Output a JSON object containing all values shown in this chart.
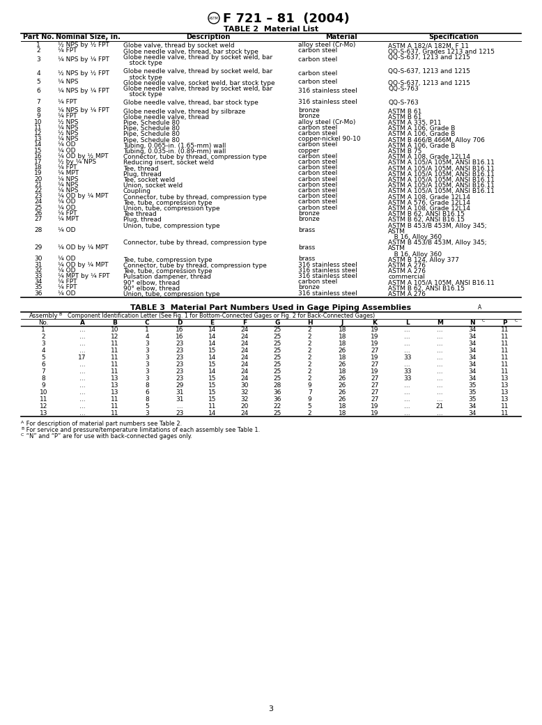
{
  "title": "F 721 – 81  (2004)",
  "table2_title": "TABLE 2  Material List",
  "table3_title": "TABLE 3  Material Part Numbers Used in Gage Piping Assemblies",
  "table2_headers": [
    "Part No.",
    "Nominal Size, in.",
    "Description",
    "Material",
    "Specification"
  ],
  "table2_col_props": [
    0.07,
    0.13,
    0.35,
    0.18,
    0.27
  ],
  "table3_letters": [
    "A",
    "B",
    "C",
    "D",
    "E",
    "F",
    "G",
    "H",
    "J",
    "K",
    "L",
    "M",
    "N",
    "P"
  ],
  "table3_letter_supers": [
    "",
    "",
    "",
    "",
    "",
    "",
    "",
    "",
    "",
    "",
    "",
    "",
    "C",
    "C"
  ],
  "table3_rows": [
    [
      "1",
      "...",
      "10",
      "1",
      "16",
      "14",
      "24",
      "25",
      "2",
      "18",
      "19",
      "...",
      "...",
      "34",
      "11"
    ],
    [
      "2",
      "...",
      "12",
      "4",
      "16",
      "14",
      "24",
      "25",
      "2",
      "18",
      "19",
      "...",
      "...",
      "34",
      "11"
    ],
    [
      "3",
      "...",
      "11",
      "3",
      "23",
      "14",
      "24",
      "25",
      "2",
      "18",
      "19",
      "...",
      "...",
      "34",
      "11"
    ],
    [
      "4",
      "...",
      "11",
      "3",
      "23",
      "15",
      "24",
      "25",
      "2",
      "26",
      "27",
      "...",
      "...",
      "34",
      "11"
    ],
    [
      "5",
      "17",
      "11",
      "3",
      "23",
      "14",
      "24",
      "25",
      "2",
      "18",
      "19",
      "33",
      "...",
      "34",
      "11"
    ],
    [
      "6",
      "...",
      "11",
      "3",
      "23",
      "15",
      "24",
      "25",
      "2",
      "26",
      "27",
      "...",
      "...",
      "34",
      "11"
    ],
    [
      "7",
      "...",
      "11",
      "3",
      "23",
      "14",
      "24",
      "25",
      "2",
      "18",
      "19",
      "33",
      "...",
      "34",
      "11"
    ],
    [
      "8",
      "...",
      "13",
      "3",
      "23",
      "15",
      "24",
      "25",
      "2",
      "26",
      "27",
      "33",
      "...",
      "34",
      "13"
    ],
    [
      "9",
      "...",
      "13",
      "8",
      "29",
      "15",
      "30",
      "28",
      "9",
      "26",
      "27",
      "...",
      "...",
      "35",
      "13"
    ],
    [
      "10",
      "...",
      "13",
      "6",
      "31",
      "15",
      "32",
      "36",
      "7",
      "26",
      "27",
      "...",
      "...",
      "35",
      "13"
    ],
    [
      "11",
      "...",
      "11",
      "8",
      "31",
      "15",
      "32",
      "36",
      "9",
      "26",
      "27",
      "...",
      "...",
      "35",
      "13"
    ],
    [
      "12",
      "...",
      "11",
      "5",
      "...",
      "11",
      "20",
      "22",
      "5",
      "18",
      "19",
      "...",
      "21",
      "34",
      "11"
    ],
    [
      "13",
      "...",
      "11",
      "3",
      "23",
      "14",
      "24",
      "25",
      "2",
      "18",
      "19",
      "...",
      "...",
      "34",
      "11"
    ]
  ],
  "footnotes": [
    [
      "A",
      " For description of material part numbers see Table 2."
    ],
    [
      "B",
      " For service and pressure/temperature limitations of each assembly see Table 1."
    ],
    [
      "C",
      " “N” and “P” are for use with back-connected gages only."
    ]
  ],
  "page_number": "3",
  "background_color": "#ffffff",
  "text_color": "#000000"
}
